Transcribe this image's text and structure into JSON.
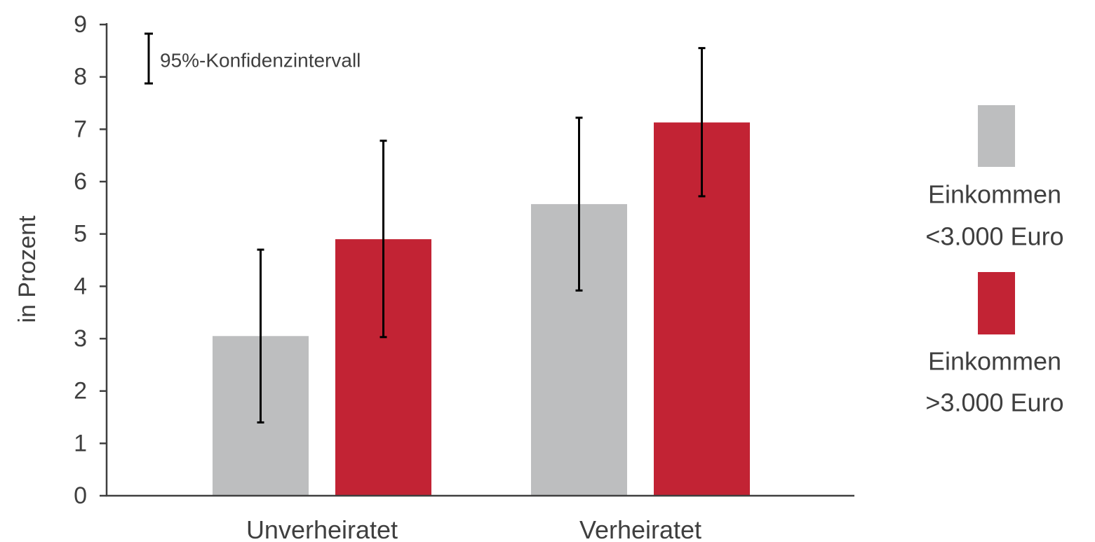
{
  "chart_data": {
    "type": "bar",
    "title": "",
    "xlabel": "",
    "ylabel": "in Prozent",
    "ylim": [
      0,
      9
    ],
    "yticks": [
      0,
      1,
      2,
      3,
      4,
      5,
      6,
      7,
      8,
      9
    ],
    "grid": false,
    "legend_position": "right",
    "categories": [
      "Unverheiratet",
      "Verheiratet"
    ],
    "series": [
      {
        "name": "Einkommen <3.000 Euro",
        "name_lines": [
          "Einkommen",
          "<3.000 Euro"
        ],
        "color": "#bdbebf",
        "values": [
          3.05,
          5.57
        ],
        "ci_low": [
          1.4,
          3.92
        ],
        "ci_high": [
          4.7,
          7.22
        ]
      },
      {
        "name": "Einkommen >3.000 Euro",
        "name_lines": [
          "Einkommen",
          ">3.000 Euro"
        ],
        "color": "#c22334",
        "values": [
          4.9,
          7.13
        ],
        "ci_low": [
          3.03,
          5.72
        ],
        "ci_high": [
          6.78,
          8.55
        ]
      }
    ],
    "annotation": "95%-Konfidenzintervall"
  }
}
